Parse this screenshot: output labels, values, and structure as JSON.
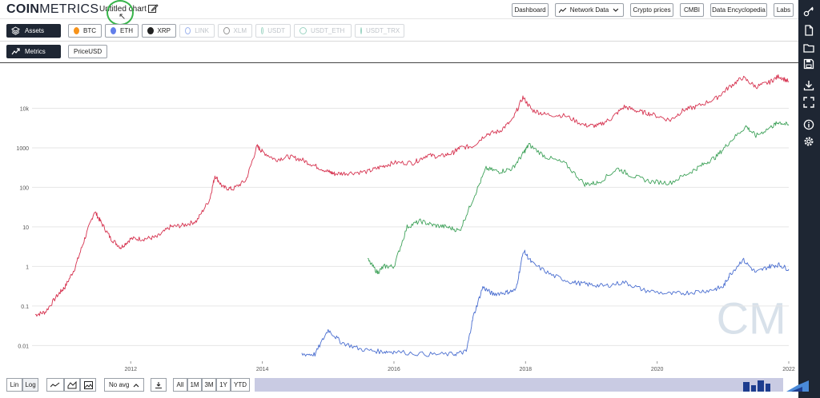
{
  "header": {
    "logo_bold": "COIN",
    "logo_light": "METRICS",
    "chart_title": "Untitled chart",
    "nav": [
      "Dashboard",
      "Network Data",
      "Crypto prices",
      "CMBI",
      "Data Encyclopedia",
      "Labs"
    ]
  },
  "assets": {
    "label": "Assets",
    "chips": [
      {
        "label": "BTC",
        "color": "#f7931a",
        "enabled": true
      },
      {
        "label": "ETH",
        "color": "#627eea",
        "enabled": true
      },
      {
        "label": "XRP",
        "color": "#222222",
        "enabled": true
      },
      {
        "label": "LINK",
        "color": "#2a5ada",
        "enabled": false
      },
      {
        "label": "XLM",
        "color": "#111111",
        "enabled": false
      },
      {
        "label": "USDT",
        "color": "#26a17b",
        "enabled": false
      },
      {
        "label": "USDT_ETH",
        "color": "#26a17b",
        "enabled": false
      },
      {
        "label": "USDT_TRX",
        "color": "#26a17b",
        "enabled": false
      }
    ]
  },
  "metrics": {
    "label": "Metrics",
    "selected": "PriceUSD"
  },
  "chart_data": {
    "type": "line",
    "title": "",
    "xlabel": "",
    "ylabel": "",
    "yscale": "log",
    "ylim": [
      0.004,
      100000
    ],
    "xlim": [
      2010.5,
      2022.0
    ],
    "y_ticks": [
      "0.01",
      "0.1",
      "1",
      "10",
      "100",
      "1000",
      "10k"
    ],
    "x_ticks": [
      "2012",
      "2014",
      "2016",
      "2018",
      "2020",
      "2022"
    ],
    "grid": true,
    "watermark": "CM",
    "series": [
      {
        "color": "#d6324f",
        "points": [
          [
            2010.55,
            0.06
          ],
          [
            2010.7,
            0.07
          ],
          [
            2010.9,
            0.2
          ],
          [
            2011.0,
            0.3
          ],
          [
            2011.15,
            0.9
          ],
          [
            2011.3,
            5
          ],
          [
            2011.45,
            25
          ],
          [
            2011.55,
            13
          ],
          [
            2011.7,
            5
          ],
          [
            2011.85,
            3
          ],
          [
            2012.0,
            5
          ],
          [
            2012.2,
            5
          ],
          [
            2012.4,
            5.5
          ],
          [
            2012.6,
            10
          ],
          [
            2012.8,
            11
          ],
          [
            2013.0,
            14
          ],
          [
            2013.2,
            50
          ],
          [
            2013.28,
            200
          ],
          [
            2013.4,
            100
          ],
          [
            2013.55,
            90
          ],
          [
            2013.75,
            150
          ],
          [
            2013.92,
            1100
          ],
          [
            2014.0,
            800
          ],
          [
            2014.2,
            500
          ],
          [
            2014.4,
            600
          ],
          [
            2014.6,
            500
          ],
          [
            2014.8,
            350
          ],
          [
            2015.0,
            250
          ],
          [
            2015.1,
            220
          ],
          [
            2015.3,
            230
          ],
          [
            2015.6,
            250
          ],
          [
            2015.8,
            330
          ],
          [
            2016.0,
            420
          ],
          [
            2016.3,
            420
          ],
          [
            2016.5,
            650
          ],
          [
            2016.7,
            600
          ],
          [
            2016.9,
            750
          ],
          [
            2017.0,
            1000
          ],
          [
            2017.2,
            1100
          ],
          [
            2017.4,
            2200
          ],
          [
            2017.6,
            2600
          ],
          [
            2017.8,
            5000
          ],
          [
            2017.96,
            19000
          ],
          [
            2018.1,
            9000
          ],
          [
            2018.3,
            7000
          ],
          [
            2018.6,
            6500
          ],
          [
            2018.9,
            3700
          ],
          [
            2019.1,
            3600
          ],
          [
            2019.3,
            5500
          ],
          [
            2019.5,
            11000
          ],
          [
            2019.7,
            8500
          ],
          [
            2019.9,
            7200
          ],
          [
            2020.2,
            5000
          ],
          [
            2020.4,
            9000
          ],
          [
            2020.6,
            11000
          ],
          [
            2020.9,
            18000
          ],
          [
            2021.1,
            35000
          ],
          [
            2021.3,
            60000
          ],
          [
            2021.5,
            35000
          ],
          [
            2021.7,
            45000
          ],
          [
            2021.85,
            65000
          ],
          [
            2022.0,
            47000
          ]
        ]
      },
      {
        "color": "#3fa25a",
        "points": [
          [
            2015.6,
            1.5
          ],
          [
            2015.75,
            0.7
          ],
          [
            2015.85,
            1
          ],
          [
            2016.0,
            1
          ],
          [
            2016.2,
            10
          ],
          [
            2016.4,
            14
          ],
          [
            2016.6,
            11
          ],
          [
            2016.8,
            10
          ],
          [
            2017.0,
            8
          ],
          [
            2017.2,
            50
          ],
          [
            2017.4,
            300
          ],
          [
            2017.6,
            250
          ],
          [
            2017.8,
            300
          ],
          [
            2017.96,
            700
          ],
          [
            2018.05,
            1200
          ],
          [
            2018.3,
            600
          ],
          [
            2018.6,
            400
          ],
          [
            2018.9,
            120
          ],
          [
            2019.1,
            130
          ],
          [
            2019.4,
            300
          ],
          [
            2019.6,
            200
          ],
          [
            2019.9,
            140
          ],
          [
            2020.2,
            130
          ],
          [
            2020.5,
            240
          ],
          [
            2020.7,
            380
          ],
          [
            2020.9,
            600
          ],
          [
            2021.1,
            1400
          ],
          [
            2021.35,
            3500
          ],
          [
            2021.5,
            2000
          ],
          [
            2021.75,
            3500
          ],
          [
            2021.85,
            4500
          ],
          [
            2022.0,
            3700
          ]
        ]
      },
      {
        "color": "#4a6ed0",
        "points": [
          [
            2014.6,
            0.006
          ],
          [
            2014.8,
            0.006
          ],
          [
            2015.0,
            0.025
          ],
          [
            2015.2,
            0.012
          ],
          [
            2015.5,
            0.008
          ],
          [
            2015.8,
            0.007
          ],
          [
            2016.0,
            0.007
          ],
          [
            2016.5,
            0.006
          ],
          [
            2016.9,
            0.006
          ],
          [
            2017.1,
            0.007
          ],
          [
            2017.2,
            0.05
          ],
          [
            2017.35,
            0.3
          ],
          [
            2017.5,
            0.2
          ],
          [
            2017.7,
            0.22
          ],
          [
            2017.85,
            0.25
          ],
          [
            2017.97,
            2.5
          ],
          [
            2018.1,
            1.2
          ],
          [
            2018.4,
            0.6
          ],
          [
            2018.7,
            0.4
          ],
          [
            2018.95,
            0.35
          ],
          [
            2019.2,
            0.32
          ],
          [
            2019.5,
            0.4
          ],
          [
            2019.8,
            0.25
          ],
          [
            2020.2,
            0.2
          ],
          [
            2020.5,
            0.22
          ],
          [
            2020.8,
            0.25
          ],
          [
            2021.0,
            0.3
          ],
          [
            2021.1,
            0.6
          ],
          [
            2021.3,
            1.5
          ],
          [
            2021.5,
            0.7
          ],
          [
            2021.7,
            1.0
          ],
          [
            2021.85,
            1.1
          ],
          [
            2022.0,
            0.85
          ]
        ]
      }
    ]
  },
  "bottom_bar": {
    "scale_buttons": [
      "Lin",
      "Log"
    ],
    "avg_label": "No avg",
    "ranges": [
      "All",
      "1M",
      "3M",
      "1Y",
      "YTD"
    ]
  }
}
